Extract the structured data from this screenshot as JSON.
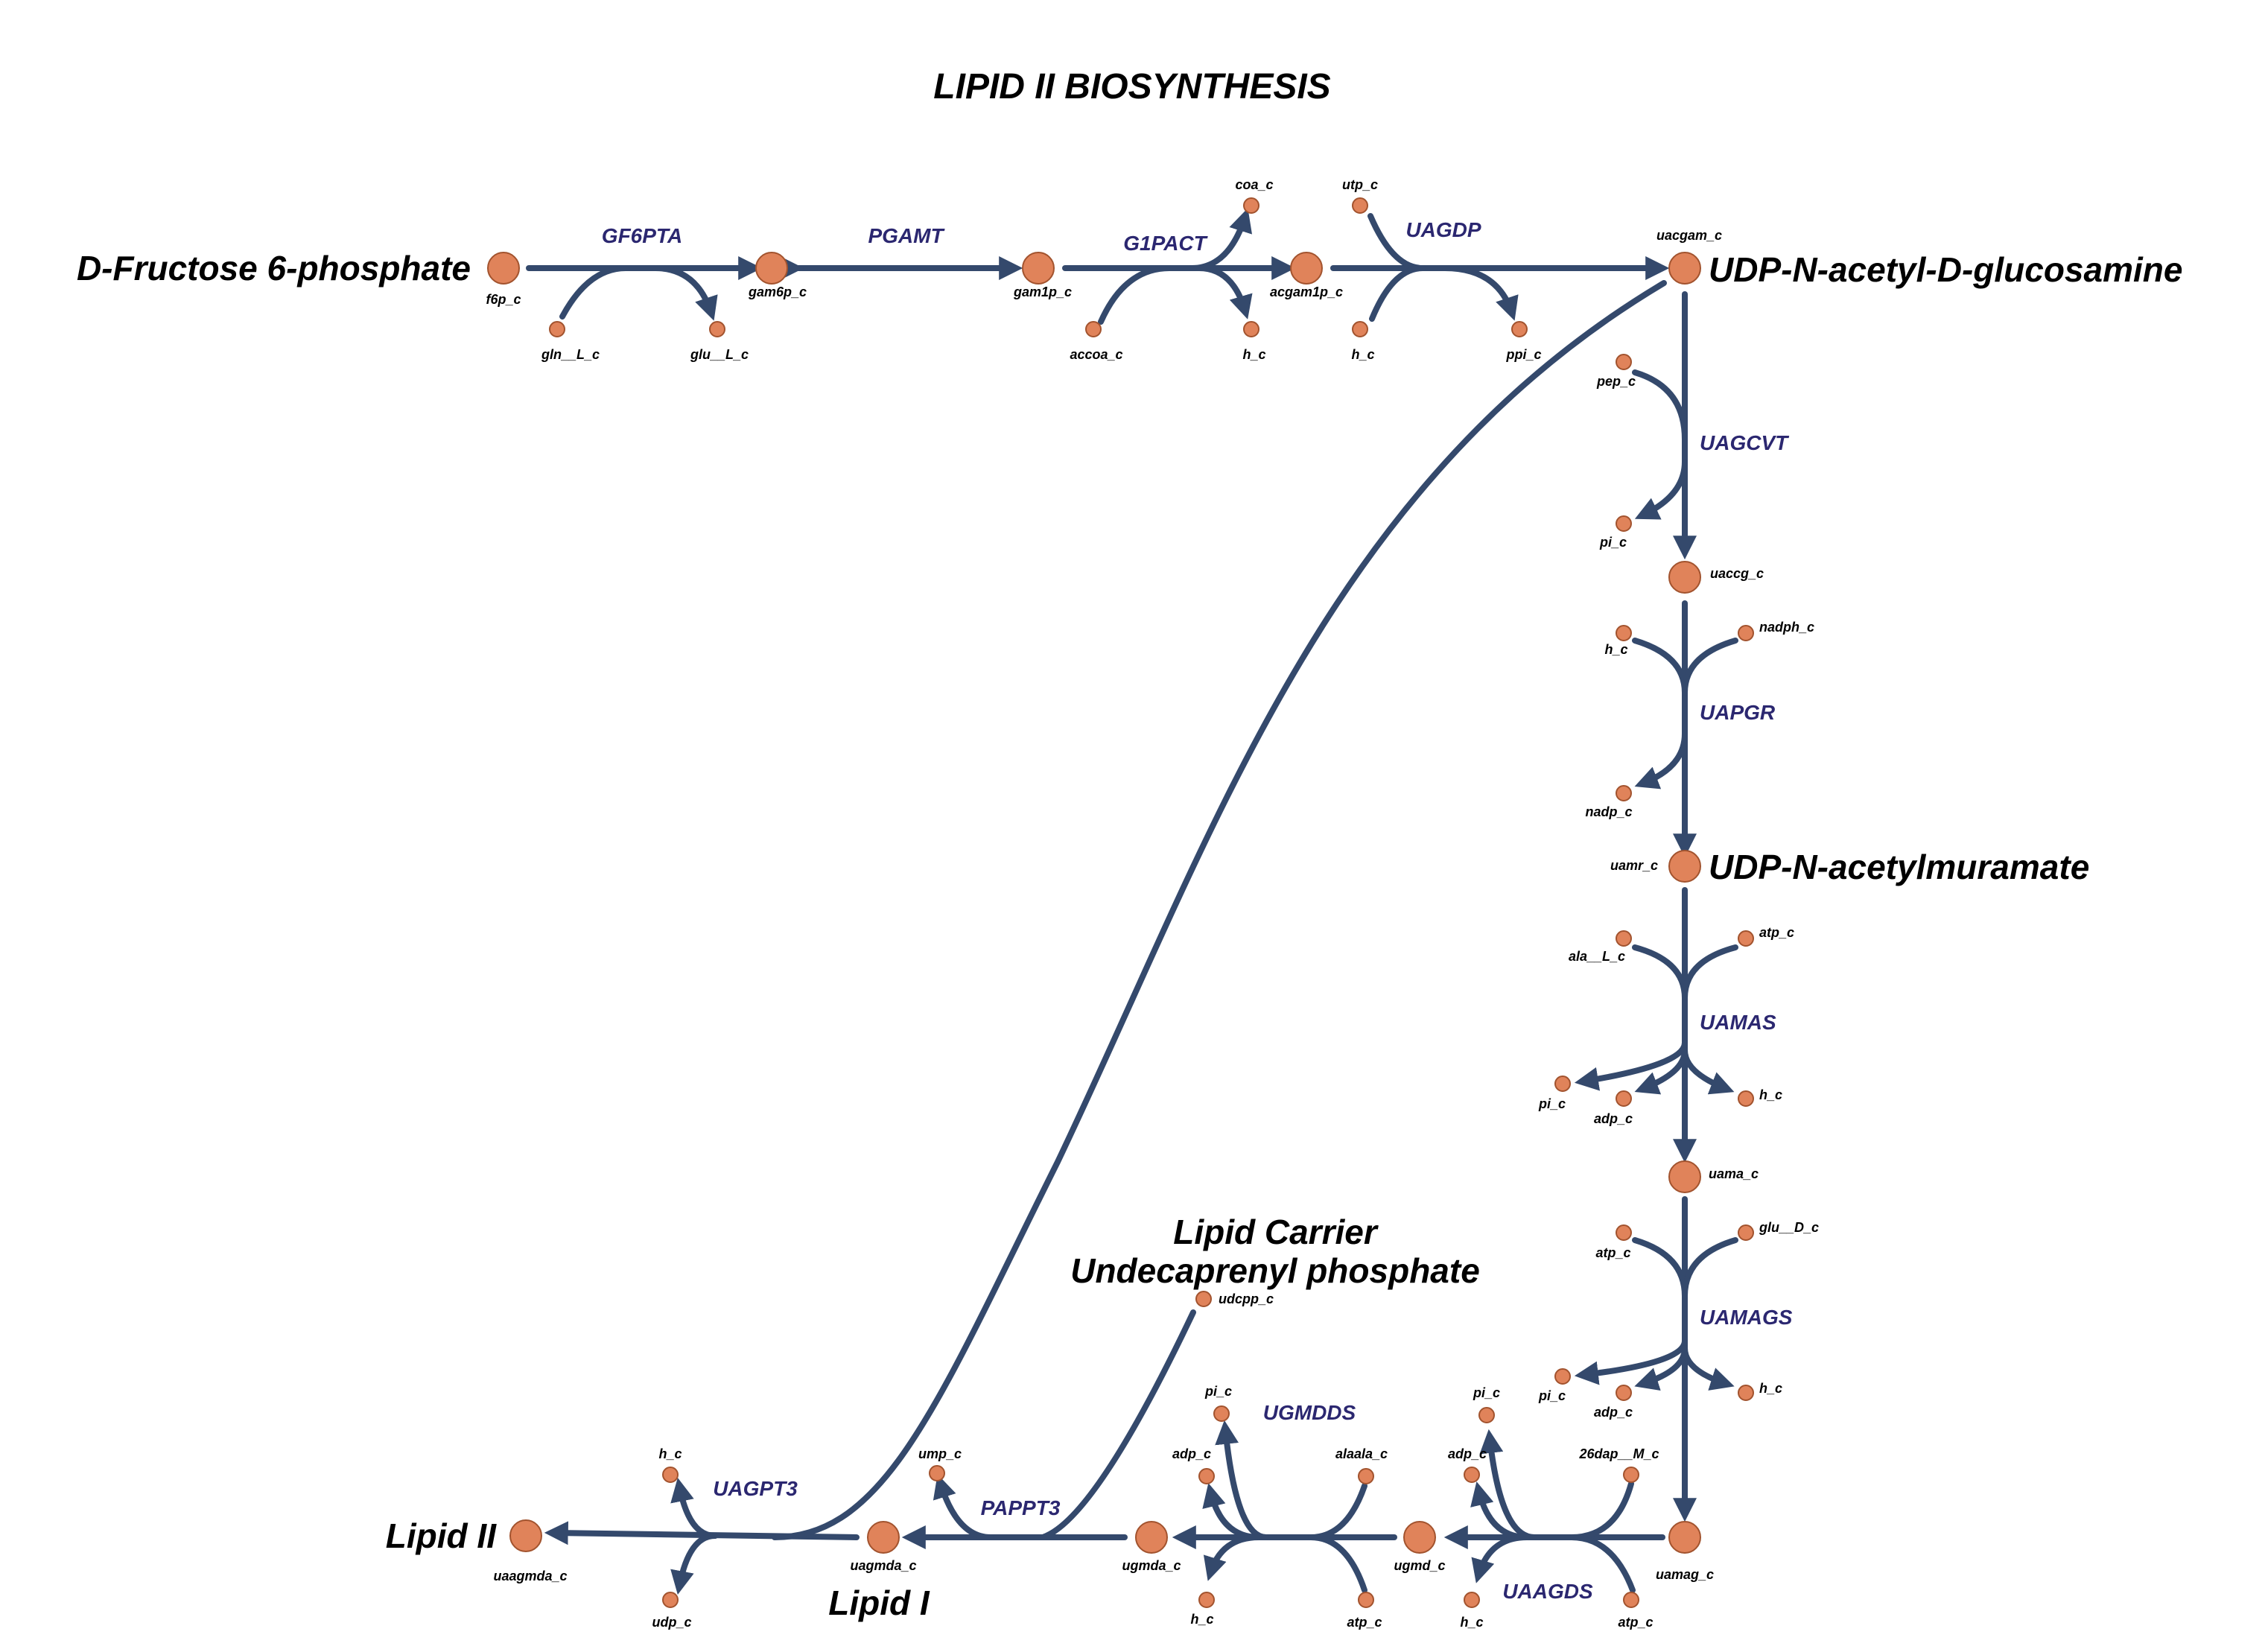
{
  "title": "LIPID II BIOSYNTHESIS",
  "colors": {
    "edge": "#34496c",
    "node_fill": "#e0835a",
    "node_stroke": "#a2532e",
    "reaction_label": "#2b2770"
  },
  "big_labels": {
    "f6p": "D-Fructose 6-phosphate",
    "uacgam": "UDP-N-acetyl-D-glucosamine",
    "uamr": "UDP-N-acetylmuramate",
    "carrier_1": "Lipid Carrier",
    "carrier_2": "Undecaprenyl phosphate",
    "lipid1": "Lipid I",
    "lipid2": "Lipid II"
  },
  "reactions": {
    "GF6PTA": "GF6PTA",
    "PGAMT": "PGAMT",
    "G1PACT": "G1PACT",
    "UAGDP": "UAGDP",
    "UAGCVT": "UAGCVT",
    "UAPGR": "UAPGR",
    "UAMAS": "UAMAS",
    "UAMAGS": "UAMAGS",
    "UAAGDS": "UAAGDS",
    "UGMDDS": "UGMDDS",
    "PAPPT3": "PAPPT3",
    "UAGPT3": "UAGPT3"
  },
  "metabolites": {
    "f6p_c": "f6p_c",
    "gam6p_c": "gam6p_c",
    "gam1p_c": "gam1p_c",
    "acgam1p_c": "acgam1p_c",
    "uacgam_c": "uacgam_c",
    "gln__L_c": "gln__L_c",
    "glu__L_c": "glu__L_c",
    "coa_c": "coa_c",
    "accoa_c": "accoa_c",
    "h_c_g1pact": "h_c",
    "utp_c": "utp_c",
    "h_c_uagdp": "h_c",
    "ppi_c": "ppi_c",
    "pep_c": "pep_c",
    "pi_c_uagcvt": "pi_c",
    "uaccg_c": "uaccg_c",
    "h_c_uapgr": "h_c",
    "nadph_c": "nadph_c",
    "nadp_c": "nadp_c",
    "uamr_c": "uamr_c",
    "ala__L_c": "ala__L_c",
    "atp_c_uamas": "atp_c",
    "pi_c_uamas": "pi_c",
    "adp_c_uamas": "adp_c",
    "h_c_uamas": "h_c",
    "uama_c": "uama_c",
    "atp_c_uamags": "atp_c",
    "glu__D_c": "glu__D_c",
    "pi_c_uamags": "pi_c",
    "adp_c_uamags": "adp_c",
    "h_c_uamags": "h_c",
    "uamag_c": "uamag_c",
    "26dap__M_c": "26dap__M_c",
    "pi_c_uaagds": "pi_c",
    "adp_c_uaagds": "adp_c",
    "h_c_uaagds": "h_c",
    "atp_c_uaagds": "atp_c",
    "ugmd_c": "ugmd_c",
    "pi_c_ugmdds": "pi_c",
    "adp_c_ugmdds": "adp_c",
    "alaala_c": "alaala_c",
    "h_c_ugmdds": "h_c",
    "atp_c_ugmdds": "atp_c",
    "ugmda_c": "ugmda_c",
    "udcpp_c": "udcpp_c",
    "ump_c": "ump_c",
    "uagmda_c": "uagmda_c",
    "h_c_uagpt3": "h_c",
    "udp_c": "udp_c",
    "uaagmda_c": "uaagmda_c"
  }
}
